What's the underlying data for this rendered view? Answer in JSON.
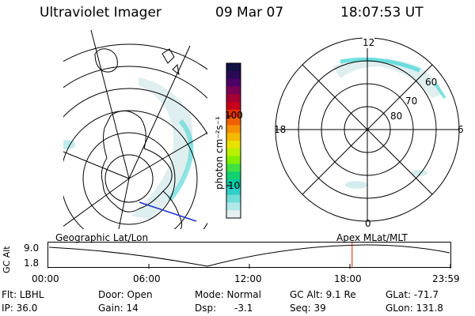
{
  "header": {
    "title": "Ultraviolet Imager",
    "date": "09 Mar 07",
    "time": "18:07:53 UT"
  },
  "colorbar": {
    "unit_label": "photon cm⁻²s⁻¹",
    "tick_labels": [
      "100",
      "10"
    ],
    "colors": [
      "#111144",
      "#2a0a55",
      "#4d0066",
      "#7a0055",
      "#a30033",
      "#c4001a",
      "#e03000",
      "#f06000",
      "#f59000",
      "#f5b800",
      "#e8e000",
      "#b8f000",
      "#80f000",
      "#40e040",
      "#10d070",
      "#00c8a0",
      "#30d0c8",
      "#70dcd8",
      "#b0e8e8",
      "#e6f0f0"
    ]
  },
  "polar_plot": {
    "labels": {
      "top": "12",
      "bottom": "0",
      "left": "18",
      "right": "6"
    },
    "lat_labels": [
      "60",
      "70",
      "80"
    ]
  },
  "timeline": {
    "ylabel": "GC Alt",
    "ymax": "9.0",
    "ymin": "1.8",
    "left_caption": "Geographic Lat/Lon",
    "right_caption": "Apex MLat/MLT",
    "x_ticks": [
      "00:00",
      "06:00",
      "12:00",
      "18:00",
      "23:59"
    ],
    "current_fraction": 0.7555
  },
  "footer": {
    "flt": "Flt: LBHL",
    "ip": "IP: 36.0",
    "door": "Door: Open",
    "gain": "Gain: 14",
    "mode": "Mode: Normal",
    "dsp": "Dsp:",
    "dsp_val": "-3.1",
    "gcalt": "GC Alt: 9.1 Re",
    "seq": "Seq: 39",
    "glat": "GLat: -71.7",
    "glon": "GLon: 131.8"
  }
}
